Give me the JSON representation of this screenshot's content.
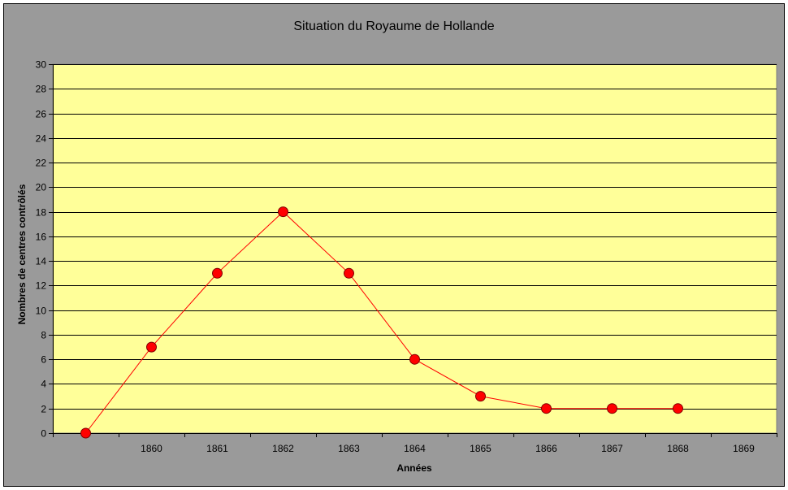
{
  "chart_data": {
    "type": "line",
    "title": "Situation du Royaume de Hollande",
    "xlabel": "Années",
    "ylabel": "Nombres de centres contrôlés",
    "x_tick_labels": [
      "",
      "1860",
      "1861",
      "1862",
      "1863",
      "1864",
      "1865",
      "1866",
      "1867",
      "1868",
      "1869"
    ],
    "y_ticks": [
      0,
      2,
      4,
      6,
      8,
      10,
      12,
      14,
      16,
      18,
      20,
      22,
      24,
      26,
      28,
      30
    ],
    "ylim": [
      0,
      30
    ],
    "grid": "horizontal",
    "legend": "none",
    "x": [
      1859,
      1860,
      1861,
      1862,
      1863,
      1864,
      1865,
      1866,
      1867,
      1868
    ],
    "values": [
      0,
      7,
      13,
      18,
      13,
      6,
      3,
      2,
      2,
      2
    ]
  },
  "colors": {
    "outer_background": "#9a9a9a",
    "plot_background": "#ffff99",
    "gridline": "#000000",
    "line": "#ff0000",
    "marker_fill": "#ff0000",
    "marker_stroke": "#800000"
  }
}
